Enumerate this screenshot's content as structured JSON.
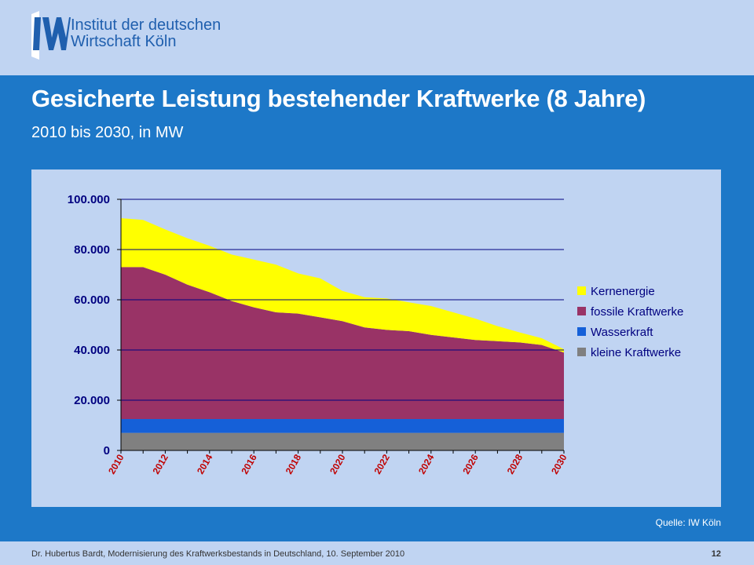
{
  "header": {
    "logo_line1": "Institut der deutschen",
    "logo_line2": "Wirtschaft Köln",
    "title": "Gesicherte Leistung bestehender Kraftwerke (8 Jahre)",
    "subtitle": "2010 bis 2030, in MW"
  },
  "colors": {
    "background": "#1d78c8",
    "panel": "#c0d4f2",
    "logo": "#1f5fae",
    "axis_text": "#000080",
    "x_tick_text": "#c00000"
  },
  "chart_data": {
    "type": "area",
    "stacked": true,
    "title": "",
    "xlabel": "",
    "ylabel": "",
    "x": [
      2010,
      2011,
      2012,
      2013,
      2014,
      2015,
      2016,
      2017,
      2018,
      2019,
      2020,
      2021,
      2022,
      2023,
      2024,
      2025,
      2026,
      2027,
      2028,
      2029,
      2030
    ],
    "x_tick_labels": [
      "2010",
      "2012",
      "2014",
      "2016",
      "2018",
      "2020",
      "2022",
      "2024",
      "2026",
      "2028",
      "2030"
    ],
    "ylim": [
      0,
      100000
    ],
    "y_tick_labels": [
      "0",
      "20.000",
      "40.000",
      "60.000",
      "80.000",
      "100.000"
    ],
    "grid": "horizontal",
    "legend_position": "right",
    "series": [
      {
        "name": "kleine Kraftwerke",
        "color": "#808080",
        "values": [
          7000,
          7000,
          7000,
          7000,
          7000,
          7000,
          7000,
          7000,
          7000,
          7000,
          7000,
          7000,
          7000,
          7000,
          7000,
          7000,
          7000,
          7000,
          7000,
          7000,
          7000
        ]
      },
      {
        "name": "Wasserkraft",
        "color": "#1560d8",
        "values": [
          5500,
          5500,
          5500,
          5500,
          5500,
          5500,
          5500,
          5500,
          5500,
          5500,
          5500,
          5500,
          5500,
          5500,
          5500,
          5500,
          5500,
          5500,
          5500,
          5500,
          5500
        ]
      },
      {
        "name": "fossile Kraftwerke",
        "color": "#993366",
        "values": [
          60500,
          60500,
          57500,
          53500,
          50500,
          47000,
          44500,
          42500,
          42000,
          40500,
          39000,
          36500,
          35500,
          35000,
          33500,
          32500,
          31500,
          31000,
          30500,
          29500,
          26500
        ]
      },
      {
        "name": "Kernenergie",
        "color": "#ffff00",
        "values": [
          19500,
          18800,
          18000,
          18500,
          18500,
          18500,
          19000,
          19000,
          16000,
          15500,
          12000,
          12000,
          12500,
          11500,
          11500,
          10000,
          8500,
          6000,
          4000,
          2700,
          1300
        ]
      }
    ]
  },
  "source": "Quelle: IW Köln",
  "footer": {
    "text": "Dr. Hubertus Bardt, Modernisierung des Kraftwerksbestands in Deutschland, 10. September 2010",
    "page": "12"
  }
}
